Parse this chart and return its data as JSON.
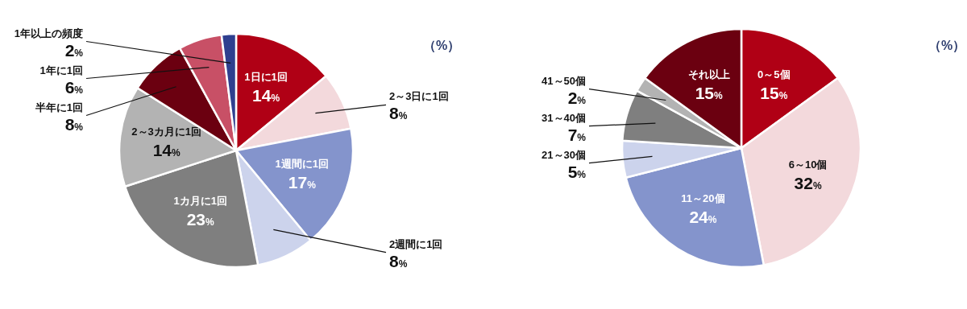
{
  "chart_data": [
    {
      "type": "pie",
      "categories": [
        "1日に1回",
        "2～3日に1回",
        "1週間に1回",
        "2週間に1回",
        "1カ月に1回",
        "2～3カ月に1回",
        "半年に1回",
        "1年に1回",
        "1年以上の頻度"
      ],
      "values": [
        14,
        8,
        17,
        8,
        23,
        14,
        8,
        6,
        2
      ],
      "value_labels": [
        "14%",
        "8%",
        "17%",
        "8%",
        "23%",
        "14%",
        "8%",
        "6%",
        "2%"
      ],
      "colors": [
        "#b00015",
        "#f3d9dc",
        "#8494cc",
        "#ccd3ec",
        "#7f7f7f",
        "#b3b3b3",
        "#6b0010",
        "#c85066",
        "#2f3f8f"
      ],
      "annotations": [
        "（%）"
      ]
    },
    {
      "type": "pie",
      "categories": [
        "0～5個",
        "6～10個",
        "11～20個",
        "21～30個",
        "31～40個",
        "41～50個",
        "それ以上"
      ],
      "values": [
        15,
        32,
        24,
        5,
        7,
        2,
        15
      ],
      "value_labels": [
        "15%",
        "32%",
        "24%",
        "5%",
        "7%",
        "2%",
        "15%"
      ],
      "colors": [
        "#b00015",
        "#f3d9dc",
        "#8494cc",
        "#ccd3ec",
        "#7f7f7f",
        "#b3b3b3",
        "#6b0010"
      ],
      "annotations": [
        "（%）"
      ]
    }
  ]
}
